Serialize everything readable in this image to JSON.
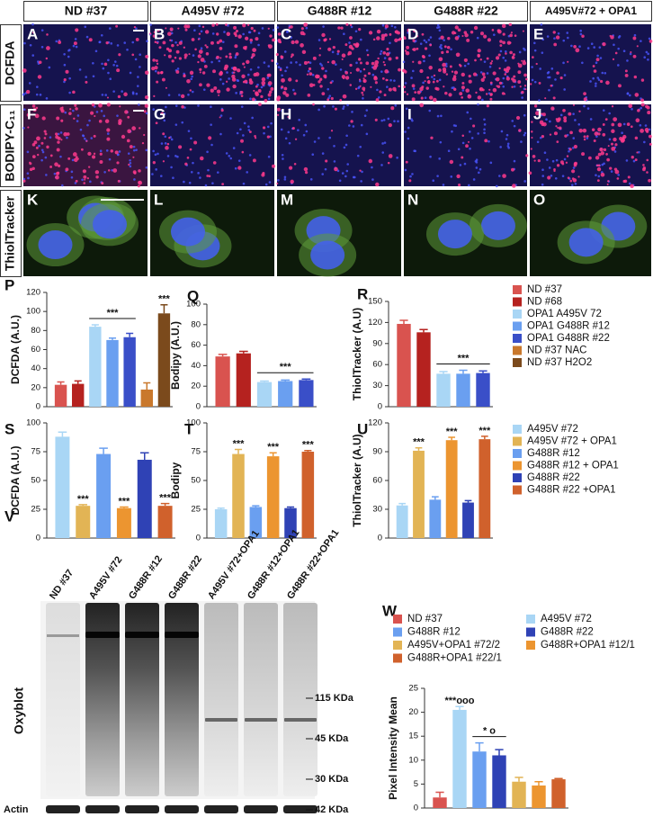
{
  "image_grid": {
    "columns": [
      "ND #37",
      "A495V #72",
      "G488R #12",
      "G488R #22",
      "A495V#72 + OPA1"
    ],
    "rows": [
      "DCFDA",
      "BODIPY-C₁₁",
      "ThiolTracker"
    ],
    "panels": [
      "A",
      "B",
      "C",
      "D",
      "E",
      "F",
      "G",
      "H",
      "I",
      "J",
      "K",
      "L",
      "M",
      "N",
      "O"
    ]
  },
  "chart_data": [
    {
      "type": "bar",
      "panel": "P",
      "y_label": "DCFDA (A.U.)",
      "ylim": [
        0,
        120
      ],
      "yticks": [
        0,
        20,
        40,
        60,
        80,
        100,
        120
      ],
      "series": [
        {
          "name": "ND #37",
          "color": "#d9534f",
          "values": [
            23
          ],
          "errors": [
            3
          ]
        },
        {
          "name": "ND #68",
          "color": "#b5221f",
          "values": [
            24
          ],
          "errors": [
            3
          ]
        },
        {
          "name": "OPA1 A495V 72",
          "color": "#a9d6f5",
          "values": [
            84
          ],
          "errors": [
            2
          ]
        },
        {
          "name": "OPA1 G488R #12",
          "color": "#6a9ff0",
          "values": [
            70
          ],
          "errors": [
            2
          ]
        },
        {
          "name": "OPA1 G488R #22",
          "color": "#3a4fc8",
          "values": [
            73
          ],
          "errors": [
            4
          ]
        },
        {
          "name": "ND #37 NAC",
          "color": "#c9782c",
          "values": [
            18
          ],
          "errors": [
            7
          ]
        },
        {
          "name": "ND #37 H2O2",
          "color": "#7b4a1c",
          "values": [
            98
          ],
          "errors": [
            9
          ]
        }
      ],
      "significance": [
        {
          "text": "***",
          "series": [
            2,
            3,
            4
          ]
        },
        {
          "text": "***",
          "series": [
            6
          ]
        }
      ]
    },
    {
      "type": "bar",
      "panel": "Q",
      "y_label": "Bodipy (A.U.)",
      "ylim": [
        0,
        100
      ],
      "yticks": [
        0,
        20,
        40,
        60,
        80,
        100
      ],
      "series": [
        {
          "color": "#d9534f",
          "values": [
            49
          ],
          "errors": [
            2
          ]
        },
        {
          "color": "#b5221f",
          "values": [
            52
          ],
          "errors": [
            2
          ]
        },
        {
          "color": "#a9d6f5",
          "values": [
            24
          ],
          "errors": [
            1
          ]
        },
        {
          "color": "#6a9ff0",
          "values": [
            25
          ],
          "errors": [
            1
          ]
        },
        {
          "color": "#3a4fc8",
          "values": [
            26
          ],
          "errors": [
            1
          ]
        }
      ],
      "significance": [
        {
          "text": "***",
          "series": [
            2,
            3,
            4
          ]
        }
      ]
    },
    {
      "type": "bar",
      "panel": "R",
      "y_label": "ThiolTracker (A.U)",
      "ylim": [
        0,
        150
      ],
      "yticks": [
        0,
        30,
        60,
        90,
        120,
        150
      ],
      "series": [
        {
          "color": "#d9534f",
          "values": [
            118
          ],
          "errors": [
            5
          ]
        },
        {
          "color": "#b5221f",
          "values": [
            106
          ],
          "errors": [
            4
          ]
        },
        {
          "color": "#a9d6f5",
          "values": [
            47
          ],
          "errors": [
            3
          ]
        },
        {
          "color": "#6a9ff0",
          "values": [
            47
          ],
          "errors": [
            5
          ]
        },
        {
          "color": "#3a4fc8",
          "values": [
            48
          ],
          "errors": [
            3
          ]
        }
      ],
      "significance": [
        {
          "text": "***",
          "series": [
            2,
            3,
            4
          ]
        }
      ]
    },
    {
      "type": "bar",
      "panel": "S",
      "y_label": "DCFDA  (A.U.)",
      "ylim": [
        0,
        100
      ],
      "yticks": [
        0,
        25,
        50,
        75,
        100
      ],
      "series": [
        {
          "name": "A495V #72",
          "color": "#a9d6f5",
          "values": [
            88
          ],
          "errors": [
            4
          ]
        },
        {
          "name": "A495V #72 + OPA1",
          "color": "#e2b455",
          "values": [
            28
          ],
          "errors": [
            1
          ]
        },
        {
          "name": "G488R #12",
          "color": "#6a9ff0",
          "values": [
            73
          ],
          "errors": [
            5
          ]
        },
        {
          "name": "G488R #12 + OPA1",
          "color": "#ec9530",
          "values": [
            26
          ],
          "errors": [
            1
          ]
        },
        {
          "name": "G488R #22",
          "color": "#2f42b5",
          "values": [
            68
          ],
          "errors": [
            6
          ]
        },
        {
          "name": "G488R #22 +OPA1",
          "color": "#d0612c",
          "values": [
            28
          ],
          "errors": [
            2
          ]
        }
      ],
      "significance": [
        {
          "text": "***",
          "series": [
            1
          ]
        },
        {
          "text": "***",
          "series": [
            3
          ]
        },
        {
          "text": "***",
          "series": [
            5
          ]
        }
      ]
    },
    {
      "type": "bar",
      "panel": "T",
      "y_label": "Bodipy",
      "ylim": [
        0,
        100
      ],
      "yticks": [
        0,
        25,
        50,
        75,
        100
      ],
      "series": [
        {
          "color": "#a9d6f5",
          "values": [
            25
          ],
          "errors": [
            1
          ]
        },
        {
          "color": "#e2b455",
          "values": [
            73
          ],
          "errors": [
            4
          ]
        },
        {
          "color": "#6a9ff0",
          "values": [
            27
          ],
          "errors": [
            1
          ]
        },
        {
          "color": "#ec9530",
          "values": [
            71
          ],
          "errors": [
            3
          ]
        },
        {
          "color": "#2f42b5",
          "values": [
            26
          ],
          "errors": [
            1
          ]
        },
        {
          "color": "#d0612c",
          "values": [
            75
          ],
          "errors": [
            1
          ]
        }
      ],
      "significance": [
        {
          "text": "***",
          "series": [
            1
          ]
        },
        {
          "text": "***",
          "series": [
            3
          ]
        },
        {
          "text": "***",
          "series": [
            5
          ]
        }
      ]
    },
    {
      "type": "bar",
      "panel": "U",
      "y_label": "ThiolTracker (A.U)",
      "ylim": [
        0,
        120
      ],
      "yticks": [
        0,
        30,
        60,
        90,
        120
      ],
      "series": [
        {
          "color": "#a9d6f5",
          "values": [
            34
          ],
          "errors": [
            2
          ]
        },
        {
          "color": "#e2b455",
          "values": [
            91
          ],
          "errors": [
            3
          ]
        },
        {
          "color": "#6a9ff0",
          "values": [
            40
          ],
          "errors": [
            3
          ]
        },
        {
          "color": "#ec9530",
          "values": [
            102
          ],
          "errors": [
            3
          ]
        },
        {
          "color": "#2f42b5",
          "values": [
            37
          ],
          "errors": [
            2
          ]
        },
        {
          "color": "#d0612c",
          "values": [
            103
          ],
          "errors": [
            3
          ]
        }
      ],
      "significance": [
        {
          "text": "***",
          "series": [
            1
          ]
        },
        {
          "text": "***",
          "series": [
            3
          ]
        },
        {
          "text": "***",
          "series": [
            5
          ]
        }
      ]
    },
    {
      "type": "bar",
      "panel": "W",
      "y_label": "Pixel Intensity Mean",
      "ylim": [
        0,
        25
      ],
      "yticks": [
        0,
        5,
        10,
        15,
        20,
        25
      ],
      "series": [
        {
          "name": "ND #37",
          "color": "#d9534f",
          "values": [
            2.2
          ],
          "errors": [
            1.1
          ]
        },
        {
          "name": "A495V #72",
          "color": "#a9d6f5",
          "values": [
            20.5
          ],
          "errors": [
            0.7
          ]
        },
        {
          "name": "G488R #12",
          "color": "#6a9ff0",
          "values": [
            11.8
          ],
          "errors": [
            1.8
          ]
        },
        {
          "name": "G488R #22",
          "color": "#2f42b5",
          "values": [
            11
          ],
          "errors": [
            1.2
          ]
        },
        {
          "name": "A495V+OPA1 #72/2",
          "color": "#e2b455",
          "values": [
            5.5
          ],
          "errors": [
            0.9
          ]
        },
        {
          "name": "G488R+OPA1 #12/1",
          "color": "#ec9530",
          "values": [
            4.7
          ],
          "errors": [
            0.8
          ]
        },
        {
          "name": "G488R+OPA1 #22/1",
          "color": "#d0612c",
          "values": [
            6
          ],
          "errors": [
            0.15
          ]
        }
      ],
      "significance": [
        {
          "text": "***ooo",
          "series": [
            1
          ]
        },
        {
          "text": "*   o",
          "series": [
            2,
            3
          ]
        }
      ]
    }
  ],
  "blot": {
    "panel": "V",
    "lanes": [
      "ND #37",
      "A495V #72",
      "G488R #12",
      "G488R #22",
      "A495V #72+OPA1",
      "G488R #12+OPA1",
      "G488R #22+OPA1"
    ],
    "label": "Oxyblot",
    "loading_label": "Actin",
    "markers": [
      "115 KDa",
      "45 KDa",
      "30 KDa"
    ],
    "loading_marker": "42 KDa"
  }
}
